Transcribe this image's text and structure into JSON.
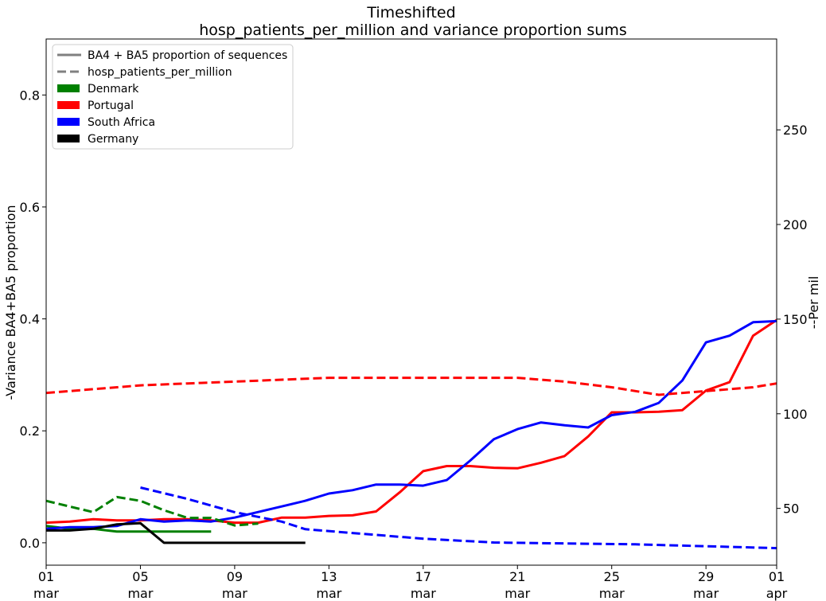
{
  "chart_data": {
    "type": "line",
    "title": [
      "Timeshifted",
      "hosp_patients_per_million and variance proportion sums"
    ],
    "ylabel_left": "-Variance BA4+BA5 proportion",
    "ylabel_right": "--Per mil",
    "xlim": [
      0,
      31
    ],
    "ylim_left": [
      -0.04,
      0.9
    ],
    "ylim_right": [
      20,
      298
    ],
    "x_ticks": [
      {
        "x": 0,
        "line1": "01",
        "line2": "mar"
      },
      {
        "x": 4,
        "line1": "05",
        "line2": "mar"
      },
      {
        "x": 8,
        "line1": "09",
        "line2": "mar"
      },
      {
        "x": 12,
        "line1": "13",
        "line2": "mar"
      },
      {
        "x": 16,
        "line1": "17",
        "line2": "mar"
      },
      {
        "x": 20,
        "line1": "21",
        "line2": "mar"
      },
      {
        "x": 24,
        "line1": "25",
        "line2": "mar"
      },
      {
        "x": 28,
        "line1": "29",
        "line2": "mar"
      },
      {
        "x": 31,
        "line1": "01",
        "line2": "apr"
      }
    ],
    "y_ticks_left": [
      0.0,
      0.2,
      0.4,
      0.6,
      0.8
    ],
    "y_ticks_left_labels": [
      "0.0",
      "0.2",
      "0.4",
      "0.6",
      "0.8"
    ],
    "y_ticks_right": [
      50,
      100,
      150,
      200,
      250
    ],
    "y_ticks_right_labels": [
      "50",
      "100",
      "150",
      "200",
      "250"
    ],
    "legend": {
      "position": "upper-left",
      "entries": [
        {
          "label": "BA4 + BA5 proportion of sequences",
          "kind": "solid-line",
          "color": "#808080"
        },
        {
          "label": "hosp_patients_per_million",
          "kind": "dashed-line",
          "color": "#808080"
        },
        {
          "label": "Denmark",
          "kind": "patch",
          "color": "#008000"
        },
        {
          "label": "Portugal",
          "kind": "patch",
          "color": "#ff0000"
        },
        {
          "label": "South Africa",
          "kind": "patch",
          "color": "#0000ff"
        },
        {
          "label": "Germany",
          "kind": "patch",
          "color": "#000000"
        }
      ]
    },
    "series": [
      {
        "country": "Denmark",
        "color": "#008000",
        "style": "solid",
        "axis": "left",
        "x": [
          0,
          1,
          2,
          3,
          4,
          5,
          6,
          7
        ],
        "y": [
          0.03,
          0.025,
          0.025,
          0.02,
          0.02,
          0.02,
          0.02,
          0.02
        ]
      },
      {
        "country": "Portugal",
        "color": "#ff0000",
        "style": "solid",
        "axis": "left",
        "x": [
          0,
          1,
          2,
          3,
          4,
          5,
          6,
          7,
          8,
          9,
          10,
          11,
          12,
          13,
          14,
          15,
          16,
          17,
          18,
          19,
          20,
          21,
          22,
          23,
          24,
          25,
          26,
          27,
          28,
          29,
          30,
          31
        ],
        "y": [
          0.036,
          0.038,
          0.042,
          0.04,
          0.04,
          0.042,
          0.042,
          0.04,
          0.036,
          0.036,
          0.045,
          0.045,
          0.048,
          0.049,
          0.056,
          0.09,
          0.128,
          0.137,
          0.137,
          0.134,
          0.133,
          0.143,
          0.155,
          0.19,
          0.233,
          0.233,
          0.234,
          0.237,
          0.272,
          0.287,
          0.37,
          0.398
        ]
      },
      {
        "country": "South Africa",
        "color": "#0000ff",
        "style": "solid",
        "axis": "left",
        "x": [
          0,
          1,
          2,
          3,
          4,
          5,
          6,
          7,
          8,
          9,
          10,
          11,
          12,
          13,
          14,
          15,
          16,
          17,
          18,
          19,
          20,
          21,
          22,
          23,
          24,
          25,
          26,
          27,
          28,
          29,
          30,
          31
        ],
        "y": [
          0.025,
          0.028,
          0.028,
          0.03,
          0.042,
          0.038,
          0.04,
          0.038,
          0.045,
          0.055,
          0.065,
          0.075,
          0.088,
          0.094,
          0.104,
          0.104,
          0.102,
          0.112,
          0.147,
          0.185,
          0.203,
          0.215,
          0.21,
          0.206,
          0.228,
          0.234,
          0.25,
          0.29,
          0.358,
          0.37,
          0.394,
          0.396
        ]
      },
      {
        "country": "Germany",
        "color": "#000000",
        "style": "solid",
        "axis": "left",
        "x": [
          0,
          1,
          2,
          3,
          4,
          5,
          6,
          7,
          8,
          9,
          10,
          11
        ],
        "y": [
          0.022,
          0.022,
          0.025,
          0.033,
          0.035,
          0.0,
          0.0,
          0.0,
          0.0,
          0.0,
          0.0,
          0.0
        ]
      },
      {
        "country": "Denmark",
        "color": "#008000",
        "style": "dashed",
        "axis": "right",
        "x": [
          0,
          1,
          2,
          3,
          4,
          5,
          6,
          7,
          8,
          9
        ],
        "y": [
          54,
          51,
          48,
          56,
          54,
          49,
          45,
          45,
          41,
          42
        ]
      },
      {
        "country": "Portugal",
        "color": "#ff0000",
        "style": "dashed",
        "axis": "right",
        "x": [
          0,
          2,
          4,
          6,
          8,
          10,
          12,
          14,
          16,
          18,
          20,
          22,
          24,
          26,
          28,
          30,
          31
        ],
        "y": [
          111,
          113,
          115,
          116,
          117,
          118,
          119,
          119,
          119,
          119,
          119,
          117,
          114,
          110,
          112,
          114,
          116
        ]
      },
      {
        "country": "South Africa",
        "color": "#0000ff",
        "style": "dashed",
        "axis": "right",
        "x": [
          4,
          6,
          8,
          10,
          11,
          13,
          16,
          19,
          22,
          25,
          28,
          31
        ],
        "y": [
          61,
          55,
          48,
          43,
          39,
          37,
          34,
          32,
          31.5,
          31,
          30,
          29
        ]
      }
    ]
  }
}
